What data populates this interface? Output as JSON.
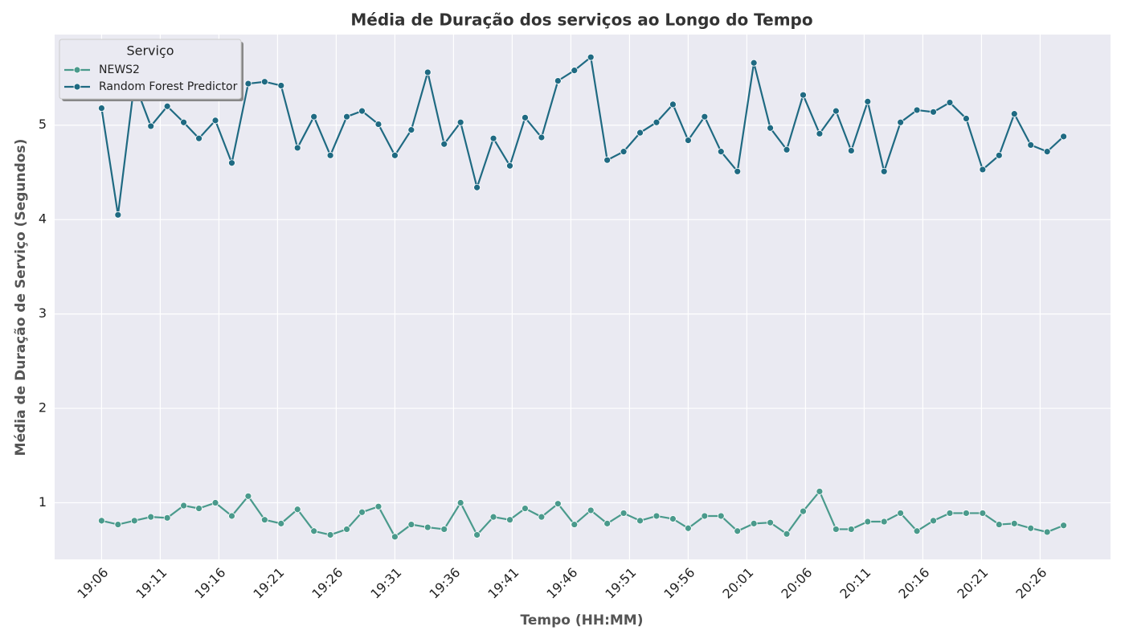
{
  "chart_data": {
    "type": "line",
    "title": "Média de Duração dos serviços ao Longo do Tempo",
    "x_label": "Tempo (HH:MM)",
    "y_label": "Média de Duração de Serviço (Segundos)",
    "legend_title": "Serviço",
    "legend": "upper left",
    "grid": true,
    "x": [
      1146.0,
      1147.4,
      1148.8,
      1150.2,
      1151.6,
      1153.0,
      1154.3,
      1155.7,
      1157.1,
      1158.5,
      1159.9,
      1161.3,
      1162.7,
      1164.1,
      1165.5,
      1166.9,
      1168.2,
      1169.6,
      1171.0,
      1172.4,
      1173.8,
      1175.2,
      1176.6,
      1178.0,
      1179.4,
      1180.8,
      1182.1,
      1183.5,
      1184.9,
      1186.3,
      1187.7,
      1189.1,
      1190.5,
      1191.9,
      1193.3,
      1194.7,
      1196.0,
      1197.4,
      1198.8,
      1200.2,
      1201.6,
      1203.0,
      1204.4,
      1205.8,
      1207.2,
      1208.6,
      1209.9,
      1211.3,
      1212.7,
      1214.1,
      1215.5,
      1216.9,
      1218.3,
      1219.7,
      1221.1,
      1222.5,
      1223.8,
      1225.2,
      1226.6,
      1228.0
    ],
    "series": [
      {
        "name": "NEWS2",
        "color": "#4a9a8c",
        "values": [
          0.81,
          0.77,
          0.81,
          0.85,
          0.84,
          0.97,
          0.94,
          1.0,
          0.86,
          1.07,
          0.82,
          0.78,
          0.93,
          0.7,
          0.66,
          0.72,
          0.9,
          0.96,
          0.64,
          0.77,
          0.74,
          0.72,
          1.0,
          0.66,
          0.85,
          0.82,
          0.94,
          0.85,
          0.99,
          0.77,
          0.92,
          0.78,
          0.89,
          0.81,
          0.86,
          0.83,
          0.73,
          0.86,
          0.86,
          0.7,
          0.78,
          0.79,
          0.67,
          0.91,
          1.12,
          0.72,
          0.72,
          0.8,
          0.8,
          0.89,
          0.7,
          0.81,
          0.89,
          0.89,
          0.89,
          0.77,
          0.78,
          0.73,
          0.69,
          0.76
        ]
      },
      {
        "name": "Random Forest Predictor",
        "color": "#1f6a82",
        "values": [
          5.18,
          4.05,
          5.45,
          4.99,
          5.2,
          5.03,
          4.86,
          5.05,
          4.6,
          5.44,
          5.46,
          5.42,
          4.76,
          5.09,
          4.68,
          5.09,
          5.15,
          5.01,
          4.68,
          4.95,
          5.56,
          4.8,
          5.03,
          4.34,
          4.86,
          4.57,
          5.08,
          4.87,
          5.47,
          5.58,
          5.72,
          4.63,
          4.72,
          4.92,
          5.03,
          5.22,
          4.84,
          5.09,
          4.72,
          4.51,
          5.66,
          4.97,
          4.74,
          5.32,
          4.91,
          5.15,
          4.73,
          5.25,
          4.51,
          5.03,
          5.16,
          5.14,
          5.24,
          5.07,
          4.53,
          4.68,
          5.12,
          4.79,
          4.72,
          4.88
        ]
      }
    ],
    "xlim": [
      1142.0,
      1232.0
    ],
    "xticks": [
      {
        "value": 1146,
        "label": "19:06"
      },
      {
        "value": 1151,
        "label": "19:11"
      },
      {
        "value": 1156,
        "label": "19:16"
      },
      {
        "value": 1161,
        "label": "19:21"
      },
      {
        "value": 1166,
        "label": "19:26"
      },
      {
        "value": 1171,
        "label": "19:31"
      },
      {
        "value": 1176,
        "label": "19:36"
      },
      {
        "value": 1181,
        "label": "19:41"
      },
      {
        "value": 1186,
        "label": "19:46"
      },
      {
        "value": 1191,
        "label": "19:51"
      },
      {
        "value": 1196,
        "label": "19:56"
      },
      {
        "value": 1201,
        "label": "20:01"
      },
      {
        "value": 1206,
        "label": "20:06"
      },
      {
        "value": 1211,
        "label": "20:11"
      },
      {
        "value": 1216,
        "label": "20:16"
      },
      {
        "value": 1221,
        "label": "20:21"
      },
      {
        "value": 1226,
        "label": "20:26"
      }
    ],
    "ylim": [
      0.4,
      5.96
    ],
    "yticks": [
      1,
      2,
      3,
      4,
      5
    ]
  }
}
